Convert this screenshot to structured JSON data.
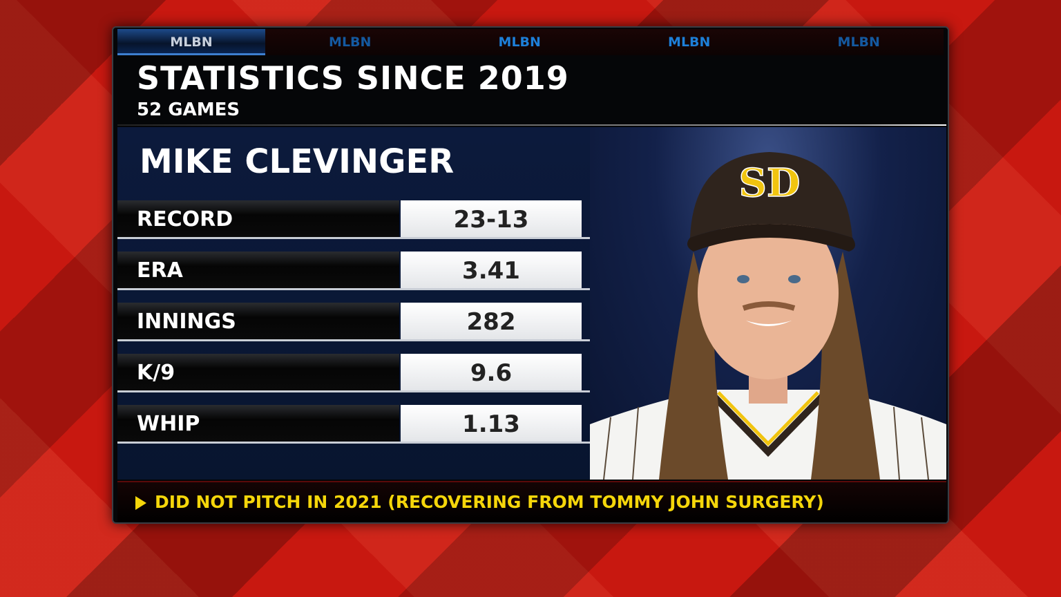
{
  "tabs": [
    "MLBN",
    "MLBN",
    "MLBN",
    "MLBN",
    "MLBN"
  ],
  "header": {
    "title": "STATISTICS SINCE 2019",
    "subtitle": "52 GAMES"
  },
  "player": {
    "name": "MIKE CLEVINGER",
    "cap_logo": "SD"
  },
  "stats": [
    {
      "label": "RECORD",
      "value": "23-13"
    },
    {
      "label": "ERA",
      "value": "3.41"
    },
    {
      "label": "INNINGS",
      "value": "282"
    },
    {
      "label": "K/9",
      "value": "9.6"
    },
    {
      "label": "WHIP",
      "value": "1.13"
    }
  ],
  "footer": {
    "note": "DID NOT PITCH IN 2021 (RECOVERING FROM TOMMY JOHN SURGERY)",
    "bullet_icon": "play-triangle-icon"
  },
  "colors": {
    "background": "#c81810",
    "accent_blue": "#1d7fd8",
    "footer_text": "#f5d60a",
    "team_brown": "#2f241d",
    "team_gold": "#f1c40f"
  }
}
